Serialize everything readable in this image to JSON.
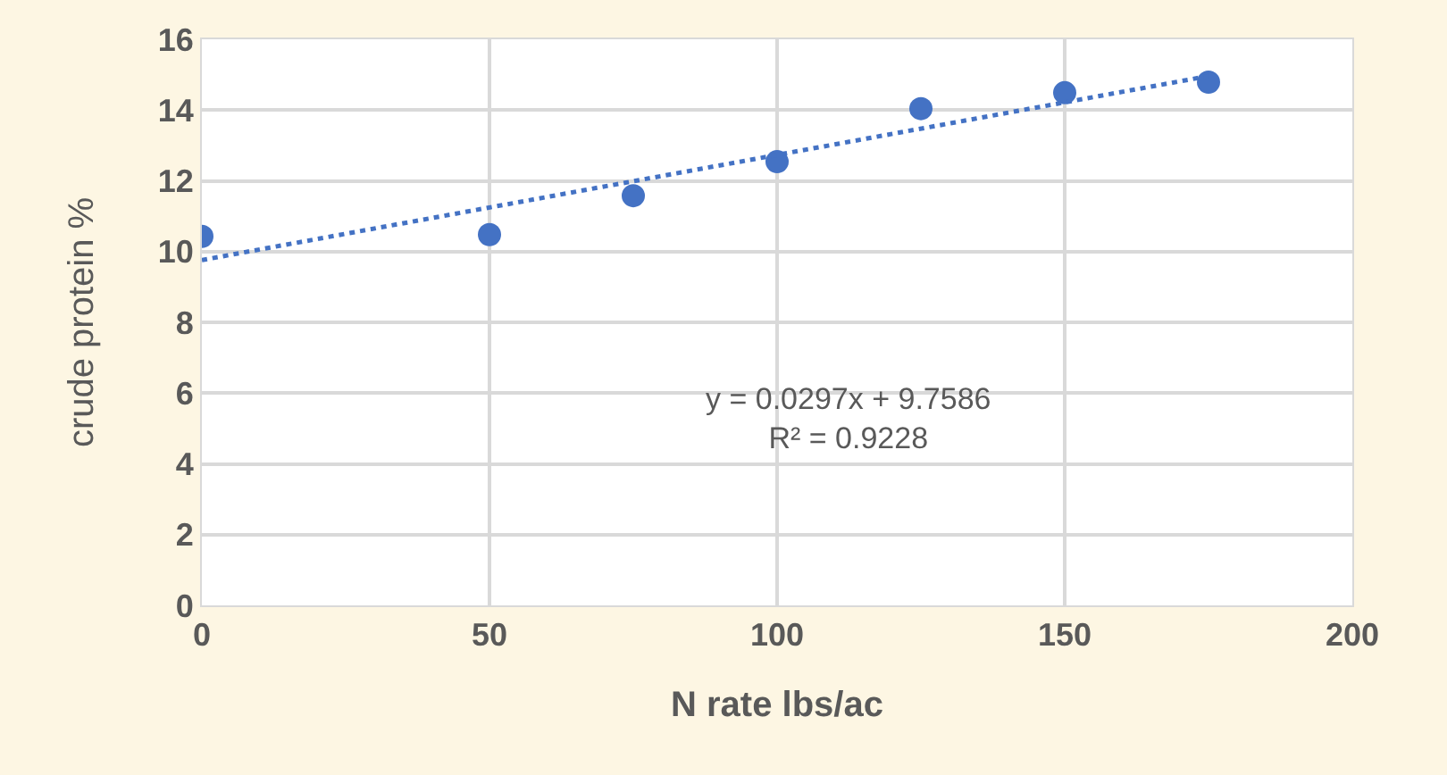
{
  "chart_data": {
    "type": "scatter",
    "xlabel": "N rate lbs/ac",
    "ylabel": "crude protein %",
    "x": [
      0,
      50,
      75,
      100,
      125,
      150,
      175
    ],
    "series": [
      {
        "color": "#4472c4",
        "values": [
          10.43,
          10.48,
          11.58,
          12.54,
          14.04,
          14.49,
          14.79
        ],
        "marker": "circle"
      },
      {
        "type": "line",
        "color": "#4472c4",
        "x": [
          0,
          175
        ],
        "values": [
          9.76,
          14.96
        ],
        "line_style": "dotted",
        "marker": "none"
      }
    ],
    "xlim": [
      0,
      200
    ],
    "xticks": [
      0,
      50,
      100,
      150,
      200
    ],
    "ylim": [
      0,
      16
    ],
    "yticks": [
      0,
      2,
      4,
      6,
      8,
      10,
      12,
      14,
      16
    ],
    "grid": true,
    "annotations": [
      "y = 0.0297x + 9.7586\nR² = 0.9228"
    ]
  }
}
